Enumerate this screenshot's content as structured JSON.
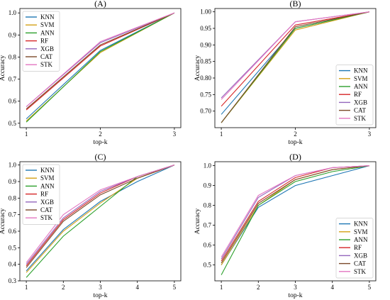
{
  "colors": {
    "KNN": "#1f77b4",
    "SVM": "#d4a017",
    "ANN": "#2ca02c",
    "RF": "#d62728",
    "XGB": "#9467bd",
    "CAT": "#7b4a2a",
    "STK": "#e377c2"
  },
  "chart_data": [
    {
      "type": "line",
      "title": "(A)",
      "xlabel": "top-k",
      "ylabel": "Accuracy",
      "x": [
        1,
        2,
        3
      ],
      "xticks": [
        "1",
        "2",
        "3"
      ],
      "ylim": [
        0.48,
        1.02
      ],
      "yticks": [
        "0.5",
        "0.6",
        "0.7",
        "0.8",
        "0.9",
        "1.0"
      ],
      "legend": "top-left",
      "series": [
        {
          "name": "KNN",
          "values": [
            0.52,
            0.83,
            1.0
          ]
        },
        {
          "name": "SVM",
          "values": [
            0.51,
            0.82,
            1.0
          ]
        },
        {
          "name": "ANN",
          "values": [
            0.505,
            0.825,
            1.0
          ]
        },
        {
          "name": "RF",
          "values": [
            0.56,
            0.85,
            1.0
          ]
        },
        {
          "name": "XGB",
          "values": [
            0.575,
            0.865,
            1.0
          ]
        },
        {
          "name": "CAT",
          "values": [
            0.565,
            0.855,
            1.0
          ]
        },
        {
          "name": "STK",
          "values": [
            0.575,
            0.87,
            1.0
          ]
        }
      ]
    },
    {
      "type": "line",
      "title": "(B)",
      "xlabel": "top-k",
      "ylabel": "Accuracy",
      "x": [
        1,
        2,
        3
      ],
      "xticks": [
        "1",
        "2",
        "3"
      ],
      "ylim": [
        0.65,
        1.01
      ],
      "yticks": [
        "0.70",
        "0.75",
        "0.80",
        "0.85",
        "0.90",
        "0.95",
        "1.00"
      ],
      "legend": "bottom-right",
      "series": [
        {
          "name": "KNN",
          "values": [
            0.69,
            0.95,
            1.0
          ]
        },
        {
          "name": "SVM",
          "values": [
            0.665,
            0.945,
            1.0
          ]
        },
        {
          "name": "ANN",
          "values": [
            0.665,
            0.95,
            1.0
          ]
        },
        {
          "name": "RF",
          "values": [
            0.715,
            0.96,
            1.0
          ]
        },
        {
          "name": "XGB",
          "values": [
            0.74,
            0.97,
            1.0
          ]
        },
        {
          "name": "CAT",
          "values": [
            0.665,
            0.955,
            1.0
          ]
        },
        {
          "name": "STK",
          "values": [
            0.735,
            0.97,
            1.0
          ]
        }
      ]
    },
    {
      "type": "line",
      "title": "(C)",
      "xlabel": "top-k",
      "ylabel": "Accuracy",
      "x": [
        1,
        2,
        3,
        4,
        5
      ],
      "xticks": [
        "1",
        "2",
        "3",
        "4",
        "5"
      ],
      "ylim": [
        0.3,
        1.02
      ],
      "yticks": [
        "0.3",
        "0.4",
        "0.5",
        "0.6",
        "0.7",
        "0.8",
        "0.9",
        "1.0"
      ],
      "legend": "top-left",
      "series": [
        {
          "name": "KNN",
          "values": [
            0.36,
            0.61,
            0.78,
            0.9,
            1.0
          ]
        },
        {
          "name": "SVM",
          "values": [
            0.35,
            0.6,
            0.77,
            0.92,
            1.0
          ]
        },
        {
          "name": "ANN",
          "values": [
            0.32,
            0.57,
            0.75,
            0.93,
            1.0
          ]
        },
        {
          "name": "RF",
          "values": [
            0.39,
            0.67,
            0.83,
            0.93,
            1.0
          ]
        },
        {
          "name": "XGB",
          "values": [
            0.4,
            0.68,
            0.84,
            0.93,
            1.0
          ]
        },
        {
          "name": "CAT",
          "values": [
            0.38,
            0.66,
            0.82,
            0.92,
            1.0
          ]
        },
        {
          "name": "STK",
          "values": [
            0.41,
            0.7,
            0.85,
            0.93,
            1.0
          ]
        }
      ]
    },
    {
      "type": "line",
      "title": "(D)",
      "xlabel": "top-k",
      "ylabel": "Accuracy",
      "x": [
        1,
        2,
        3,
        4,
        5
      ],
      "xticks": [
        "1",
        "2",
        "3",
        "4",
        "5"
      ],
      "ylim": [
        0.42,
        1.02
      ],
      "yticks": [
        "0.5",
        "0.6",
        "0.7",
        "0.8",
        "0.9",
        "1.0"
      ],
      "legend": "bottom-right",
      "series": [
        {
          "name": "KNN",
          "values": [
            0.5,
            0.79,
            0.9,
            0.95,
            1.0
          ]
        },
        {
          "name": "SVM",
          "values": [
            0.5,
            0.8,
            0.93,
            0.98,
            1.0
          ]
        },
        {
          "name": "ANN",
          "values": [
            0.45,
            0.8,
            0.92,
            0.97,
            1.0
          ]
        },
        {
          "name": "RF",
          "values": [
            0.52,
            0.82,
            0.94,
            0.99,
            1.0
          ]
        },
        {
          "name": "XGB",
          "values": [
            0.53,
            0.84,
            0.95,
            0.99,
            1.0
          ]
        },
        {
          "name": "CAT",
          "values": [
            0.51,
            0.81,
            0.93,
            0.98,
            1.0
          ]
        },
        {
          "name": "STK",
          "values": [
            0.54,
            0.85,
            0.95,
            0.99,
            1.0
          ]
        }
      ]
    }
  ]
}
